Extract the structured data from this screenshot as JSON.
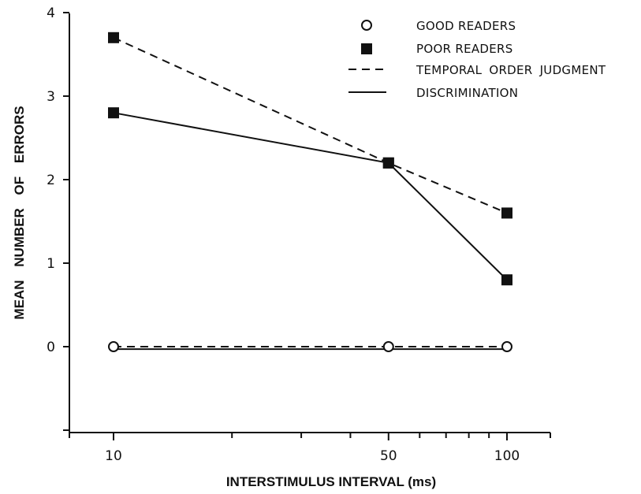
{
  "chart_data": {
    "type": "line",
    "xlabel": "INTERSTIMULUS INTERVAL (ms)",
    "ylabel": "MEAN NUMBER OF ERRORS",
    "x_ticks": [
      "10",
      "50",
      "100"
    ],
    "y_ticks": [
      "0",
      "1",
      "2",
      "3",
      "4"
    ],
    "x": [
      10,
      50,
      100
    ],
    "ylim": [
      -1,
      4
    ],
    "grid": false,
    "legend_placement": "top-right",
    "legend": {
      "good_readers": "GOOD READERS",
      "poor_readers": "POOR READERS",
      "temporal_order_judgment": "TEMPORAL ORDER JUDGMENT",
      "discrimination": "DISCRIMINATION"
    },
    "series": [
      {
        "group": "poor",
        "task": "temporal",
        "marker": "filled-square",
        "line": "dashed",
        "values": [
          3.7,
          2.2,
          1.6
        ]
      },
      {
        "group": "poor",
        "task": "discrimination",
        "marker": "filled-square",
        "line": "solid",
        "values": [
          2.8,
          2.2,
          0.8
        ]
      },
      {
        "group": "good",
        "task": "temporal",
        "marker": "open-circle",
        "line": "dashed",
        "values": [
          0,
          0,
          0
        ]
      },
      {
        "group": "good",
        "task": "discrimination",
        "marker": "open-circle",
        "line": "solid",
        "values": [
          -0.03,
          -0.03,
          -0.03
        ]
      }
    ]
  }
}
